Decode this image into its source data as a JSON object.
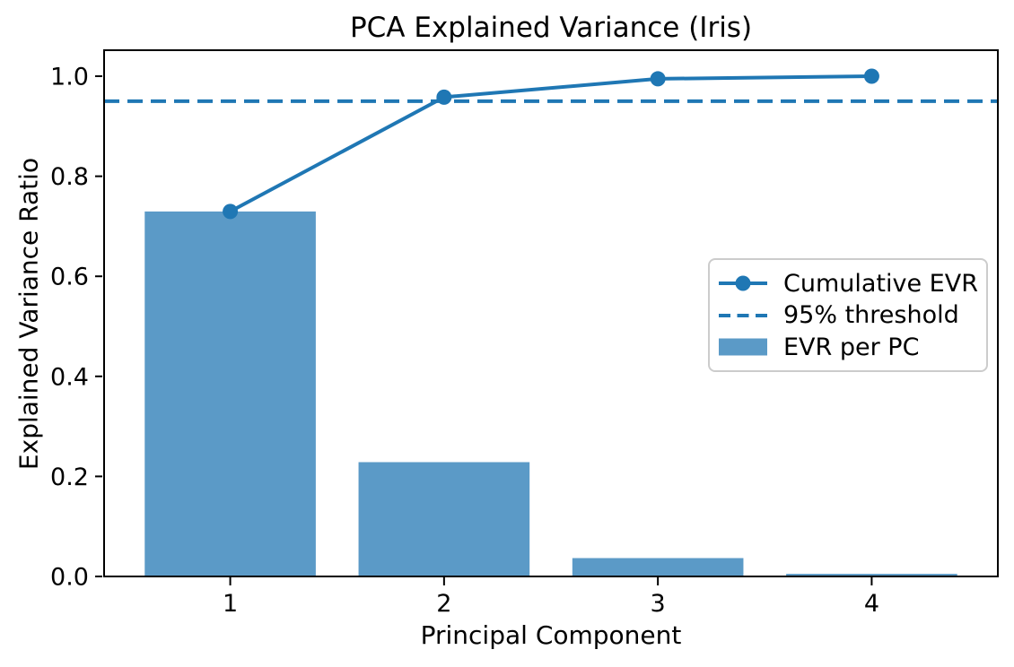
{
  "chart_data": {
    "type": "bar",
    "title": "PCA Explained Variance (Iris)",
    "xlabel": "Principal Component",
    "ylabel": "Explained Variance Ratio",
    "categories": [
      1,
      2,
      3,
      4
    ],
    "series": [
      {
        "name": "EVR per PC",
        "type": "bar",
        "values": [
          0.7296,
          0.2285,
          0.0367,
          0.0052
        ],
        "color": "#5b9ac7",
        "bar_width": 0.8
      },
      {
        "name": "Cumulative EVR",
        "type": "line",
        "values": [
          0.7296,
          0.9581,
          0.9948,
          1.0
        ],
        "color": "#1f77b4",
        "marker": "circle"
      },
      {
        "name": "95% threshold",
        "type": "hline",
        "value": 0.95,
        "color": "#1f77b4",
        "linestyle": "dashed"
      }
    ],
    "xlim": [
      0.41,
      4.59
    ],
    "ylim": [
      0,
      1.052
    ],
    "yticks": {
      "labels": [
        "0.0",
        "0.2",
        "0.4",
        "0.6",
        "0.8",
        "1.0"
      ],
      "values": [
        0.0,
        0.2,
        0.4,
        0.6,
        0.8,
        1.0
      ]
    },
    "xticks": {
      "labels": [
        "1",
        "2",
        "3",
        "4"
      ],
      "values": [
        1,
        2,
        3,
        4
      ]
    },
    "legend": {
      "position": "center right",
      "entries": [
        "Cumulative EVR",
        "95% threshold",
        "EVR per PC"
      ]
    },
    "grid": false,
    "axis_color": "#000000",
    "text_color": "#000000",
    "background": "#ffffff"
  }
}
